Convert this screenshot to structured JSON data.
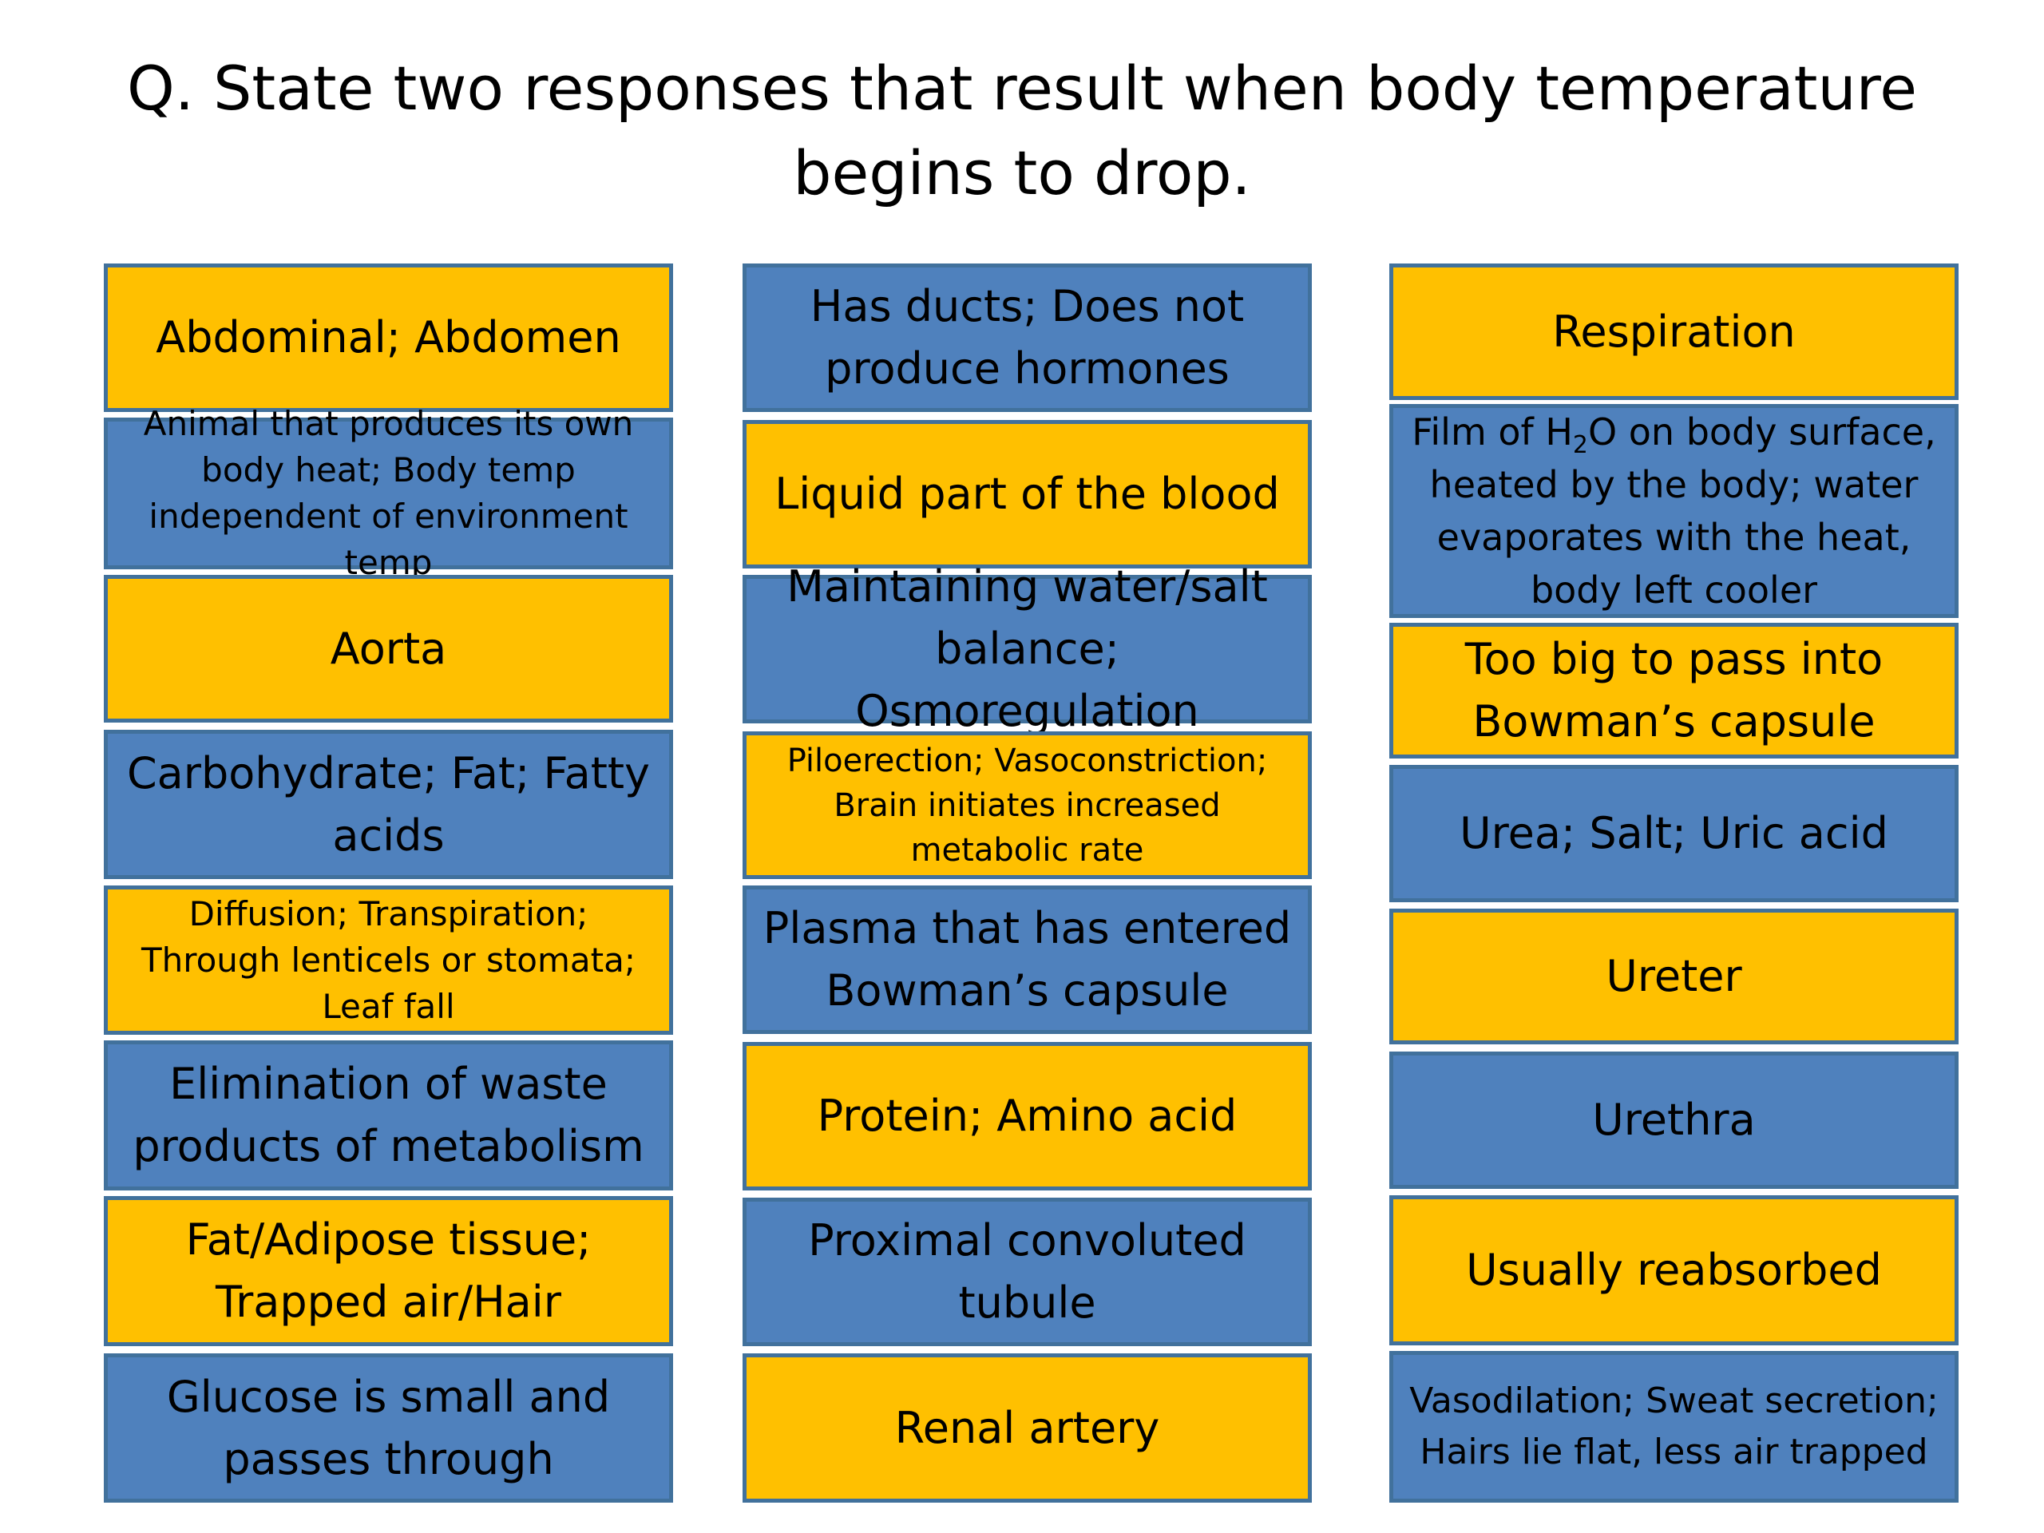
{
  "title": {
    "line1": "Q. State two responses that result when body temperature",
    "line2": "begins to drop."
  },
  "colors": {
    "yellow": "#ffc000",
    "blue": "#4f81bd",
    "border": "#41719c"
  },
  "col1": [
    {
      "text": "Abdominal; Abdomen"
    },
    {
      "text": "Animal that produces its own body heat; Body temp independent of environment temp"
    },
    {
      "text": "Aorta"
    },
    {
      "text": "Carbohydrate; Fat; Fatty acids"
    },
    {
      "text": "Diffusion; Transpiration; Through lenticels or stomata; Leaf fall"
    },
    {
      "text": "Elimination of waste products of metabolism"
    },
    {
      "text": "Fat/Adipose tissue; Trapped air/Hair"
    },
    {
      "text": "Glucose is small and passes through"
    }
  ],
  "col2": [
    {
      "text": "Has ducts; Does not produce hormones"
    },
    {
      "text": "Liquid part of the blood"
    },
    {
      "text": "Maintaining water/salt balance; Osmoregulation"
    },
    {
      "text": "Piloerection; Vasoconstriction; Brain initiates increased metabolic rate"
    },
    {
      "text": "Plasma that has entered Bowman’s capsule"
    },
    {
      "text": "Protein; Amino acid"
    },
    {
      "text": "Proximal convoluted tubule"
    },
    {
      "text": "Renal artery"
    }
  ],
  "col3": [
    {
      "text": "Respiration"
    },
    {
      "pre": "Film of H",
      "sub": "2",
      "post": "O on body surface, heated by the body; water evaporates with the heat, body left cooler"
    },
    {
      "text": "Too big to pass into Bowman’s capsule"
    },
    {
      "text": "Urea; Salt; Uric acid"
    },
    {
      "text": "Ureter"
    },
    {
      "text": "Urethra"
    },
    {
      "text": "Usually reabsorbed"
    },
    {
      "text": "Vasodilation; Sweat secretion; Hairs lie flat, less air trapped"
    }
  ]
}
